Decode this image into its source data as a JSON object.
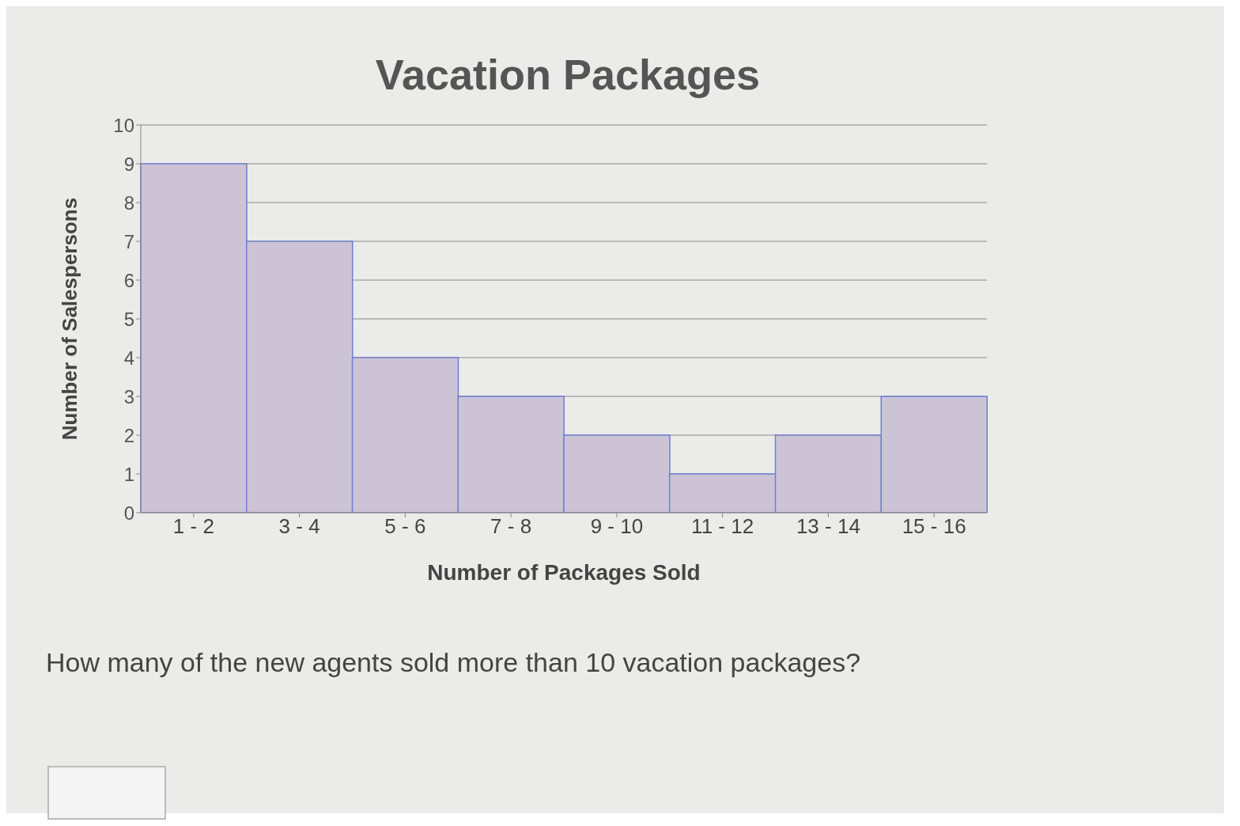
{
  "chart_data": {
    "type": "bar",
    "title": "Vacation Packages",
    "xlabel": "Number of Packages Sold",
    "ylabel": "Number of Salespersons",
    "categories": [
      "1 - 2",
      "3 - 4",
      "5 - 6",
      "7 - 8",
      "9 - 10",
      "11 - 12",
      "13 - 14",
      "15 - 16"
    ],
    "values": [
      9,
      7,
      4,
      3,
      2,
      1,
      2,
      3
    ],
    "color": "#ccc4d6",
    "ylim": [
      0,
      10
    ],
    "yticks": [
      0,
      1,
      2,
      3,
      4,
      5,
      6,
      7,
      8,
      9,
      10
    ],
    "grid": "y",
    "annotations": [
      "How many of the new agents sold more than 10 vacation packages?"
    ]
  }
}
